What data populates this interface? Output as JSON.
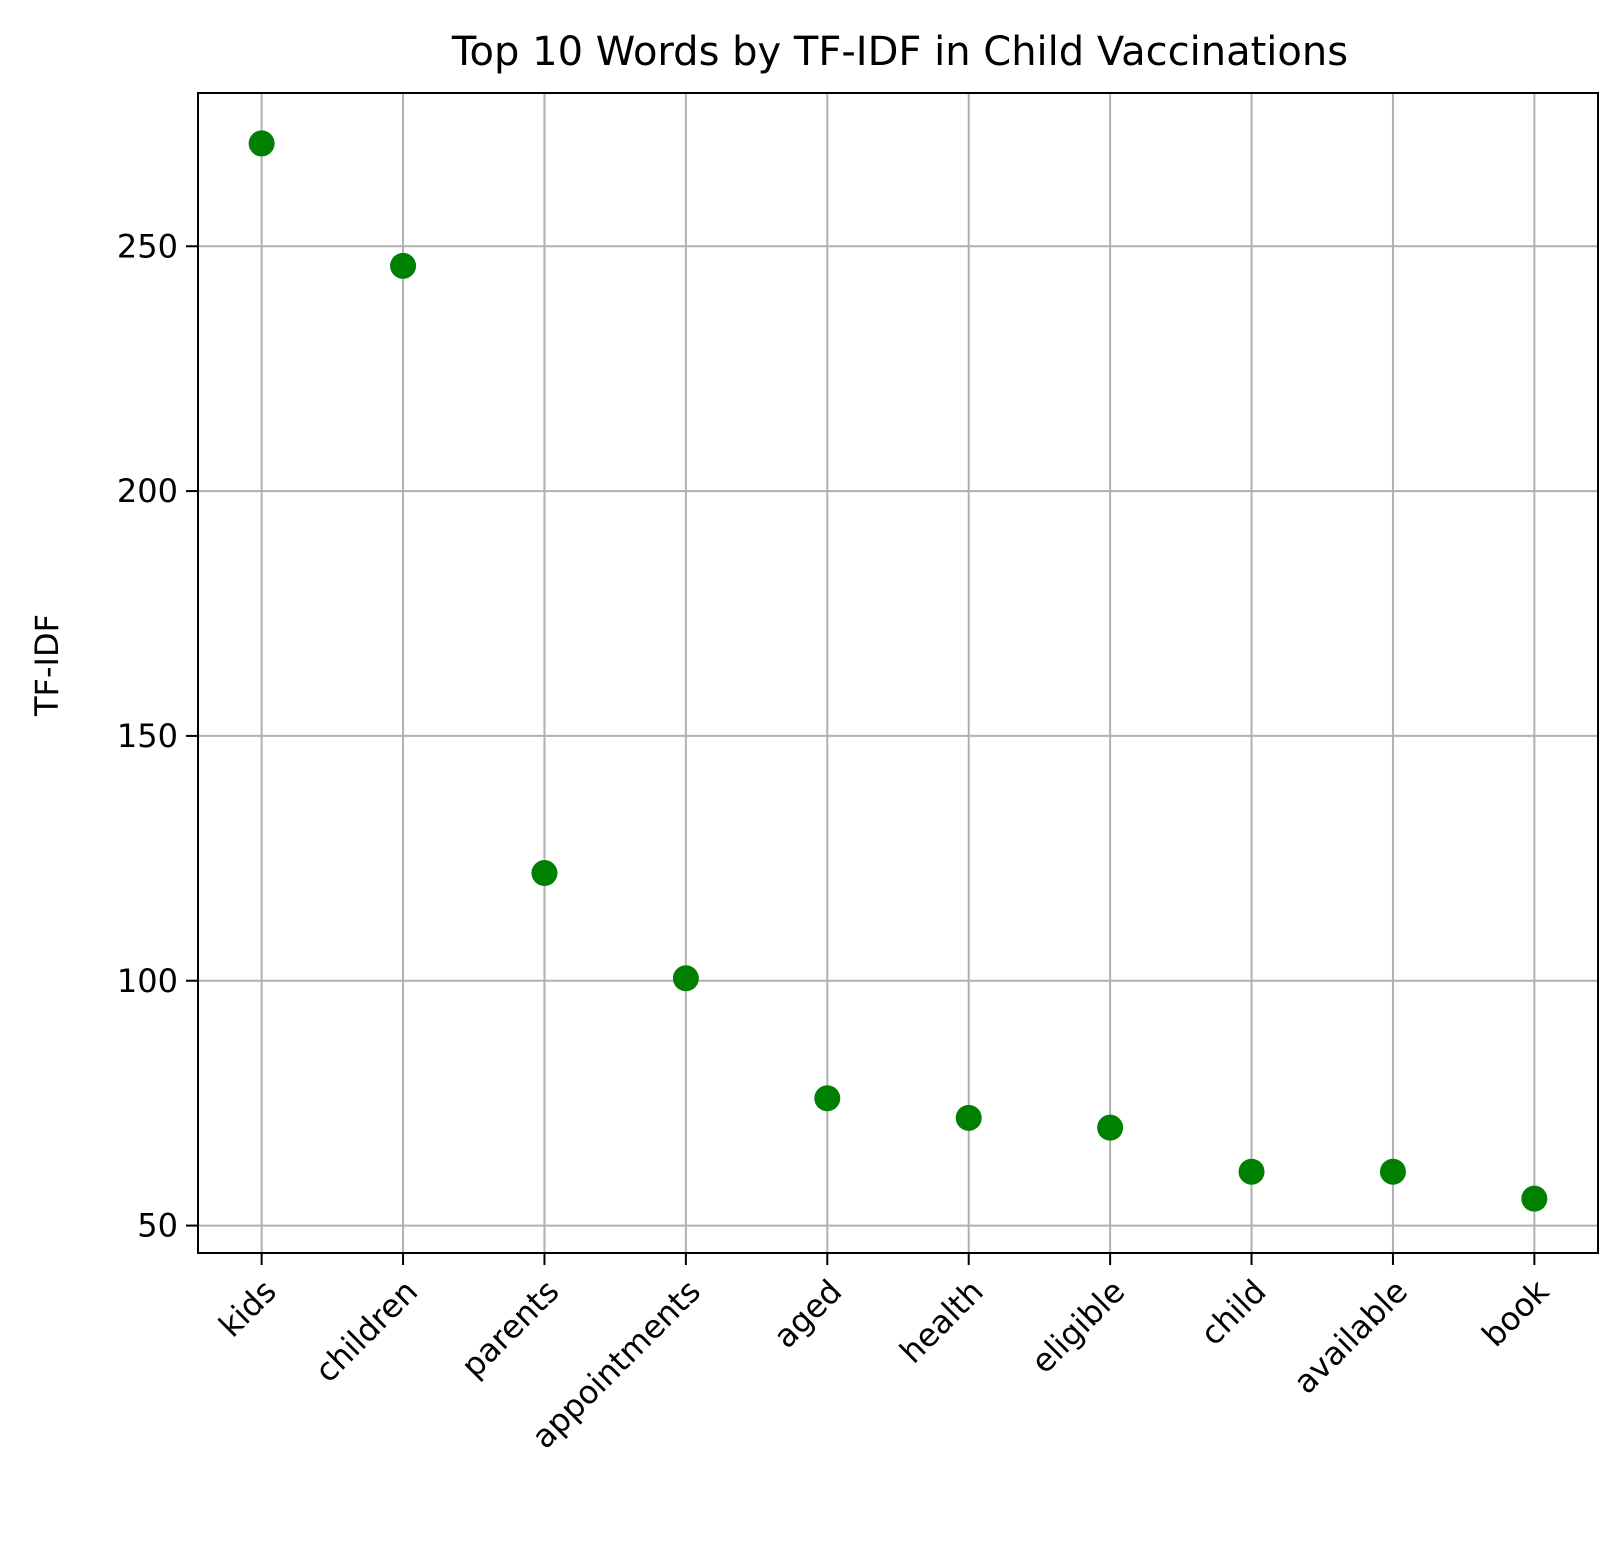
{
  "chart_data": {
    "type": "scatter",
    "title": "Top 10 Words by TF-IDF in Child Vaccinations",
    "xlabel": "",
    "ylabel": "TF-IDF",
    "categories": [
      "kids",
      "children",
      "parents",
      "appointments",
      "aged",
      "health",
      "eligible",
      "child",
      "available",
      "book"
    ],
    "values": [
      271,
      246,
      122,
      100.5,
      76,
      72,
      70,
      61,
      61,
      55.5
    ],
    "ylim": [
      44.4,
      281.3
    ],
    "yticks": [
      50,
      100,
      150,
      200,
      250
    ],
    "x_tick_rotation": 45,
    "grid": true,
    "legend": "none",
    "marker_color": "#008000",
    "grid_color": "#b0b0b0"
  }
}
